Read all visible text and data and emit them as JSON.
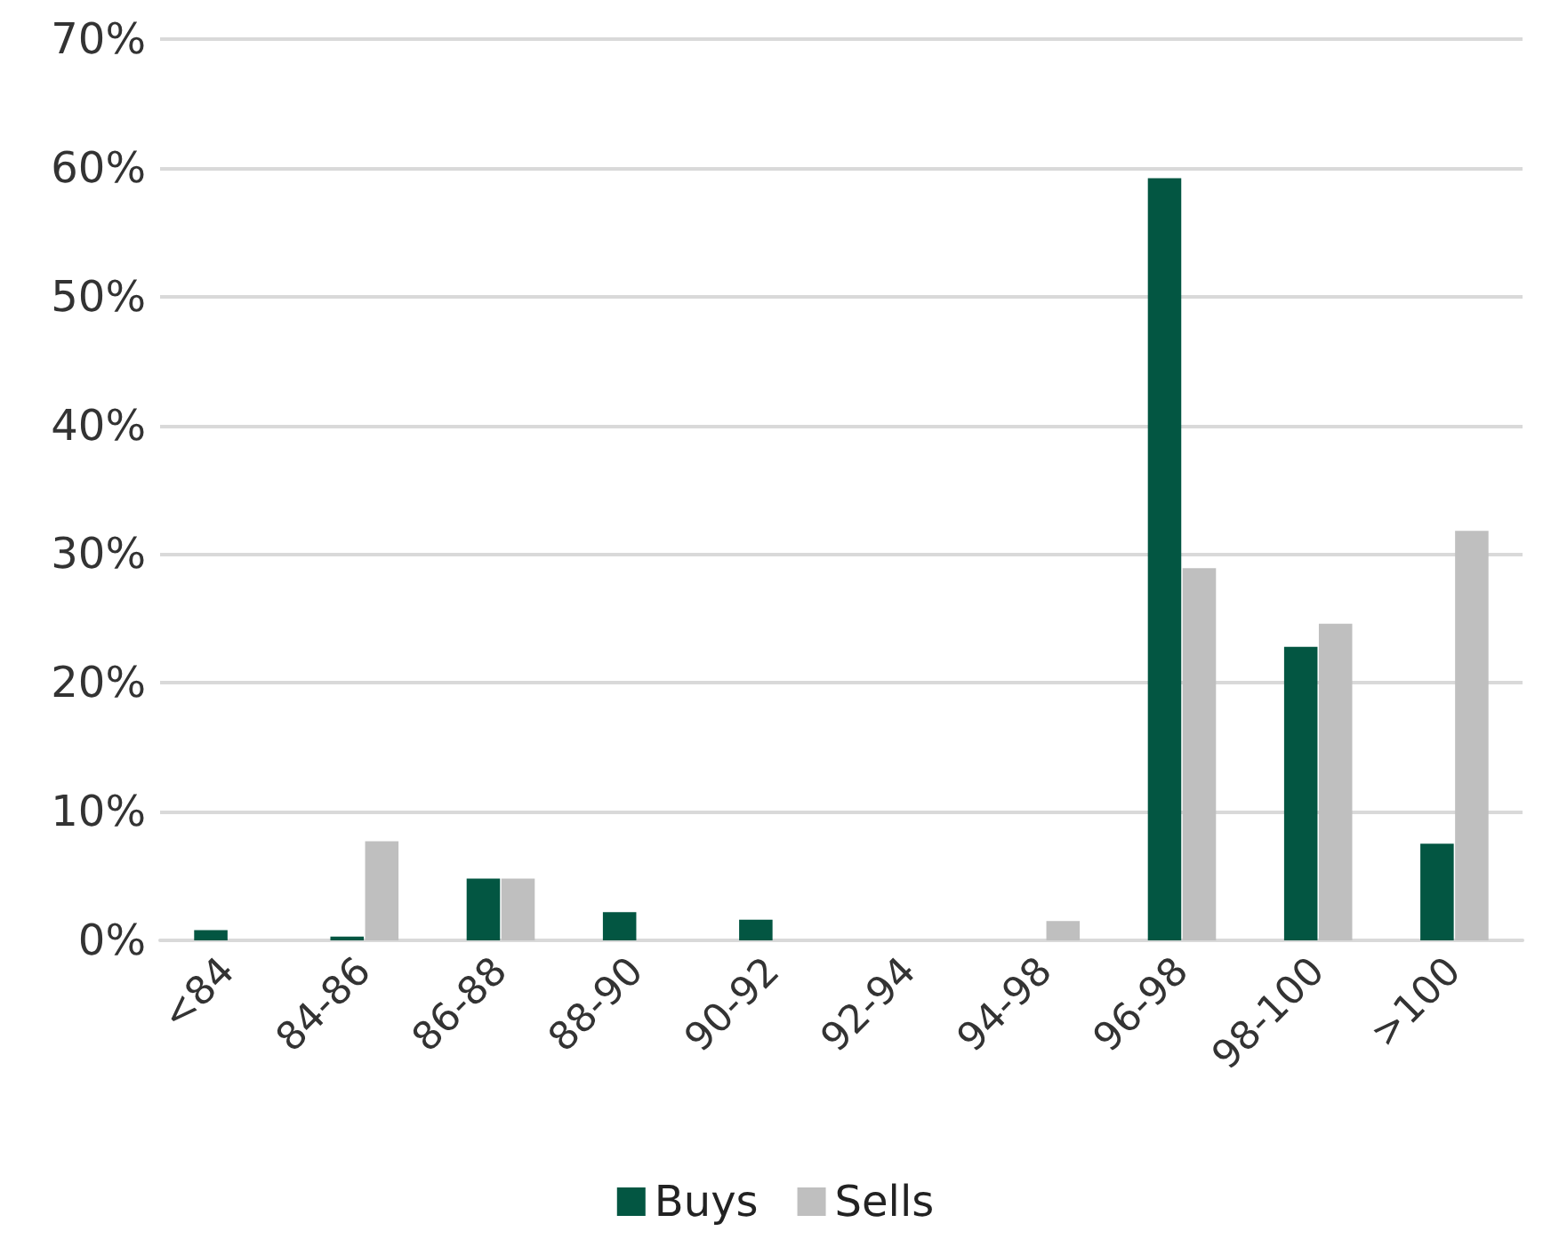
{
  "chart_data": {
    "type": "bar",
    "categories": [
      "<84",
      "84-86",
      "86-88",
      "88-90",
      "90-92",
      "92-94",
      "94-98",
      "96-98",
      "98-100",
      ">100"
    ],
    "series": [
      {
        "name": "Buys",
        "color": "#035642",
        "values": [
          0.8,
          0.3,
          4.8,
          2.2,
          1.6,
          null,
          null,
          59.2,
          22.8,
          7.5
        ]
      },
      {
        "name": "Sells",
        "color": "#bfbfbf",
        "values": [
          null,
          7.7,
          4.8,
          null,
          null,
          null,
          1.5,
          28.9,
          24.6,
          31.8
        ]
      }
    ],
    "ylim": [
      0,
      70
    ],
    "yticks": [
      {
        "value": 0,
        "label": "0%"
      },
      {
        "value": 10,
        "label": "10%"
      },
      {
        "value": 20,
        "label": "20%"
      },
      {
        "value": 30,
        "label": "30%"
      },
      {
        "value": 40,
        "label": "40%"
      },
      {
        "value": 50,
        "label": "50%"
      },
      {
        "value": 60,
        "label": "60%"
      },
      {
        "value": 70,
        "label": "70%"
      }
    ],
    "grid": "y",
    "legend": "bottom"
  }
}
